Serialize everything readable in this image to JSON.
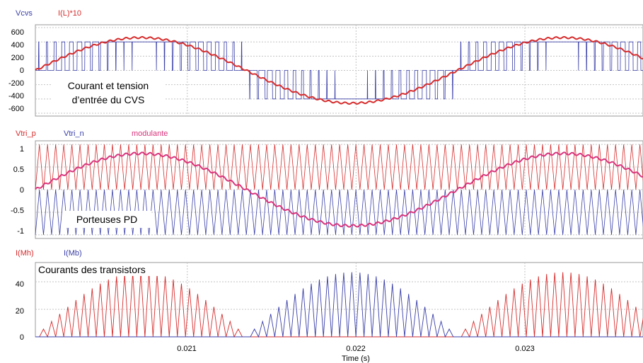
{
  "chart_data": [
    {
      "type": "line",
      "legend": [
        "Vcvs",
        "I(L)*10"
      ],
      "annotation": [
        "Courant et tension",
        "d’entrée du CVS"
      ],
      "yticks": [
        "600",
        "400",
        "200",
        "0",
        "-200",
        "-400",
        "-600"
      ],
      "ylim": [
        -640,
        640
      ],
      "xlim": [
        0.0201,
        0.0237
      ],
      "x_gridlines": [
        0.021,
        0.022,
        0.023
      ],
      "grid": true,
      "series": [
        {
          "name": "Vcvs",
          "color": "#3a3fa8",
          "description_values": {
            "amplitude": 400,
            "pwm_levels": [
              400,
              0,
              -400
            ],
            "switching_cycles_per_period": 52
          }
        },
        {
          "name": "I(L)*10",
          "color": "#d62c2c",
          "description_values": {
            "amplitude": 460,
            "frequency_hz": 400,
            "zero_crossings": [
              0.0201,
              0.02135,
              0.0226,
              0.02385
            ]
          }
        }
      ]
    },
    {
      "type": "line",
      "legend": [
        "Vtri_p",
        "Vtri_n",
        "modulante"
      ],
      "annotation": [
        "Porteuses PD"
      ],
      "yticks": [
        "1",
        "0.5",
        "0",
        "-0.5",
        "-1"
      ],
      "ylim": [
        -1.08,
        1.08
      ],
      "xlim": [
        0.0201,
        0.0237
      ],
      "x_gridlines": [
        0.021,
        0.022,
        0.023
      ],
      "grid": true,
      "series": [
        {
          "name": "Vtri_p",
          "color": "#d62c2c",
          "range": [
            0,
            1
          ]
        },
        {
          "name": "Vtri_n",
          "color": "#3a3fa8",
          "range": [
            -1,
            0
          ]
        },
        {
          "name": "modulante",
          "color": "#d8347c",
          "amplitude": 0.8,
          "frequency_hz": 400
        }
      ]
    },
    {
      "type": "line",
      "legend": [
        "I(Mh)",
        "I(Mb)"
      ],
      "annotation": [
        "Courants des transistors"
      ],
      "yticks": [
        "40",
        "20",
        "0"
      ],
      "ylim": [
        0,
        54
      ],
      "xlim": [
        0.0201,
        0.0237
      ],
      "x_gridlines": [
        0.021,
        0.022,
        0.023
      ],
      "xticks": [
        "0.021",
        "0.022",
        "0.023"
      ],
      "xlabel": "Time (s)",
      "grid": true,
      "series": [
        {
          "name": "I(Mh)",
          "color": "#d62c2c",
          "peak": 47
        },
        {
          "name": "I(Mb)",
          "color": "#3a3fa8",
          "peak": 47
        }
      ]
    }
  ],
  "colors": {
    "blue": "#3a3fa8",
    "red": "#d62c2c",
    "magenta": "#d8347c",
    "grid": "#c4c4c4",
    "frame": "#999999"
  }
}
